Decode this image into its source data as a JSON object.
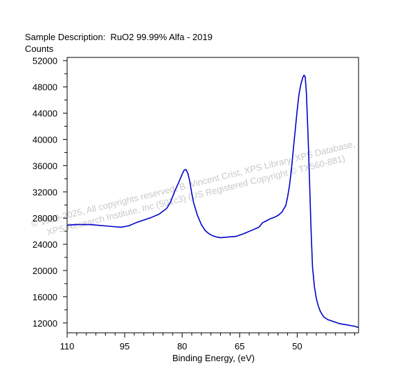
{
  "chart_data": {
    "type": "line",
    "title": "Sample Description:  RuO2 99.99% Alfa - 2019",
    "ylabel": "Counts",
    "xlabel": "Binding Energy, (eV)",
    "xlim": [
      110,
      34
    ],
    "ylim": [
      10500,
      52500
    ],
    "x_reversed": true,
    "grid": false,
    "xticks": [
      110,
      95,
      80,
      65,
      50
    ],
    "yticks": [
      12000,
      16000,
      20000,
      24000,
      28000,
      32000,
      36000,
      40000,
      44000,
      48000,
      52000
    ],
    "watermark_lines": [
      "© 1999-2025,  All copyrights reserved,  B. Vincent Crist,  XPS Library, XPS Database,",
      "XPS Research Institute, Inc (501c3)   (US Registered Copyright © TX560-881)"
    ],
    "series": [
      {
        "color": "#0000cc",
        "x": [
          110,
          108,
          106,
          104,
          102,
          100,
          98,
          96,
          94,
          92,
          90,
          88,
          86,
          84,
          83,
          82,
          81,
          80.5,
          80,
          79.5,
          79,
          78.5,
          78,
          77.5,
          77,
          76,
          75,
          74,
          73,
          72,
          71,
          70,
          68,
          66,
          64,
          62,
          60,
          59,
          58,
          57,
          56,
          55,
          54,
          53,
          52.5,
          52,
          51.5,
          51,
          50.5,
          50,
          49.5,
          49,
          48.5,
          48.2,
          47.9,
          47.6,
          47.2,
          46.8,
          46.4,
          46,
          45.5,
          45,
          44.5,
          44,
          43.5,
          43,
          42,
          41,
          40,
          39,
          38,
          37,
          36,
          35,
          34
        ],
        "y": [
          26900,
          27000,
          27000,
          27000,
          26900,
          26800,
          26700,
          26600,
          26800,
          27300,
          27700,
          28100,
          28600,
          29500,
          30500,
          32000,
          33300,
          34000,
          34700,
          35300,
          35400,
          34800,
          33500,
          31800,
          30300,
          28400,
          27000,
          26100,
          25600,
          25300,
          25100,
          25000,
          25100,
          25200,
          25600,
          26100,
          26600,
          27300,
          27600,
          27900,
          28100,
          28400,
          28900,
          29900,
          31200,
          33000,
          35500,
          38500,
          41500,
          44500,
          47000,
          48500,
          49500,
          49800,
          49500,
          47000,
          41000,
          34000,
          26500,
          20500,
          17500,
          15700,
          14600,
          13800,
          13300,
          12900,
          12500,
          12300,
          12100,
          11900,
          11800,
          11700,
          11600,
          11500,
          11300
        ]
      }
    ]
  }
}
